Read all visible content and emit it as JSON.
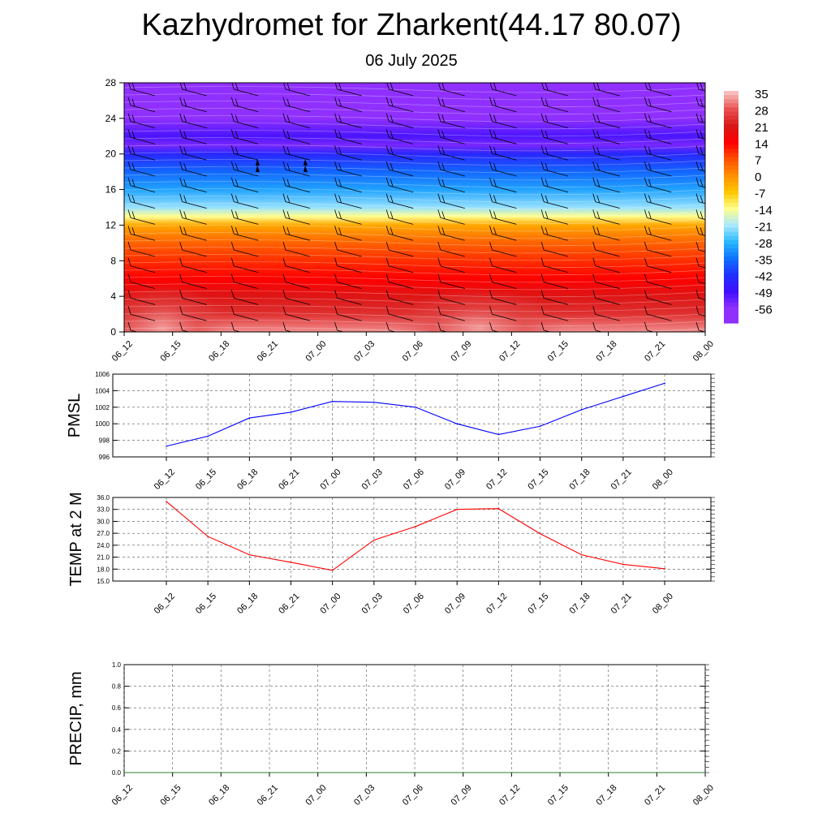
{
  "page": {
    "title": "Kazhydromet for Zharkent(44.17 80.07)",
    "subtitle": "06 July 2025"
  },
  "chart_data": [
    {
      "id": "cross-section",
      "type": "heatmap",
      "title": "",
      "xlabel": "",
      "ylabel": "",
      "x_ticks": [
        "06_12",
        "06_15",
        "06_18",
        "06_21",
        "07_00",
        "07_03",
        "07_06",
        "07_09",
        "07_12",
        "07_15",
        "07_18",
        "07_21",
        "08_00"
      ],
      "y_ticks": [
        0,
        4,
        8,
        12,
        16,
        20,
        24,
        28
      ],
      "ylim": [
        0,
        28
      ],
      "colorbar": {
        "labels": [
          "35",
          "28",
          "21",
          "14",
          "7",
          "0",
          "-7",
          "-14",
          "-21",
          "-28",
          "-35",
          "-42",
          "-49",
          "-56"
        ],
        "colors": [
          "#f8bcbc",
          "#e85050",
          "#d81818",
          "#ff0000",
          "#ff5000",
          "#ff9000",
          "#ffc800",
          "#ffff90",
          "#a8e8ff",
          "#28b8ff",
          "#1070ff",
          "#2030ff",
          "#4010ff",
          "#9030ff"
        ]
      },
      "profile": [
        {
          "level": 0,
          "value": 32
        },
        {
          "level": 2,
          "value": 24
        },
        {
          "level": 4,
          "value": 20
        },
        {
          "level": 6,
          "value": 14
        },
        {
          "level": 8,
          "value": 10
        },
        {
          "level": 10,
          "value": 5
        },
        {
          "level": 12,
          "value": -3
        },
        {
          "level": 13,
          "value": -14
        },
        {
          "level": 14,
          "value": -22
        },
        {
          "level": 16,
          "value": -30
        },
        {
          "level": 18,
          "value": -36
        },
        {
          "level": 20,
          "value": -44
        },
        {
          "level": 21,
          "value": -54
        },
        {
          "level": 22,
          "value": -50
        },
        {
          "level": 24,
          "value": -56
        },
        {
          "level": 28,
          "value": -60
        }
      ],
      "grid": false,
      "legend": "right"
    },
    {
      "id": "pmsl",
      "type": "line",
      "ylabel": "PMSL",
      "xlabel": "",
      "ylim": [
        996,
        1006
      ],
      "y_ticks": [
        "996",
        "998",
        "1000",
        "1002",
        "1004",
        "1006"
      ],
      "categories": [
        "06_12",
        "06_15",
        "06_18",
        "06_21",
        "07_00",
        "07_03",
        "07_06",
        "07_09",
        "07_12",
        "07_15",
        "07_18",
        "07_21",
        "08_00"
      ],
      "series": [
        {
          "color": "#0000ff",
          "values": [
            997.3,
            998.5,
            1000.7,
            1001.4,
            1002.7,
            1002.6,
            1002.0,
            1000.0,
            998.7,
            999.7,
            1001.7,
            1003.3,
            1004.9
          ]
        }
      ],
      "grid": true
    },
    {
      "id": "temp2m",
      "type": "line",
      "ylabel": "TEMP at 2 M",
      "xlabel": "",
      "ylim": [
        15,
        36
      ],
      "y_ticks": [
        "15.0",
        "18.0",
        "21.0",
        "24.0",
        "27.0",
        "30.0",
        "33.0",
        "36.0"
      ],
      "categories": [
        "06_12",
        "06_15",
        "06_18",
        "06_21",
        "07_00",
        "07_03",
        "07_06",
        "07_09",
        "07_12",
        "07_15",
        "07_18",
        "07_21",
        "08_00"
      ],
      "series": [
        {
          "color": "#ff0000",
          "values": [
            35.0,
            26.2,
            21.6,
            19.7,
            17.7,
            25.3,
            28.7,
            33.0,
            33.2,
            26.9,
            21.6,
            19.2,
            18.1
          ]
        }
      ],
      "grid": true
    },
    {
      "id": "precip",
      "type": "line",
      "ylabel": "PRECIP, mm",
      "xlabel": "",
      "ylim": [
        0,
        1
      ],
      "y_ticks": [
        "0.0",
        "0.2",
        "0.4",
        "0.6",
        "0.8",
        "1.0"
      ],
      "categories": [
        "06_12",
        "06_15",
        "06_18",
        "06_21",
        "07_00",
        "07_03",
        "07_06",
        "07_09",
        "07_12",
        "07_15",
        "07_18",
        "07_21",
        "08_00"
      ],
      "series": [
        {
          "color": "#2e7d32",
          "values": [
            0,
            0,
            0,
            0,
            0,
            0,
            0,
            0,
            0,
            0,
            0,
            0,
            0
          ]
        }
      ],
      "grid": true
    }
  ]
}
